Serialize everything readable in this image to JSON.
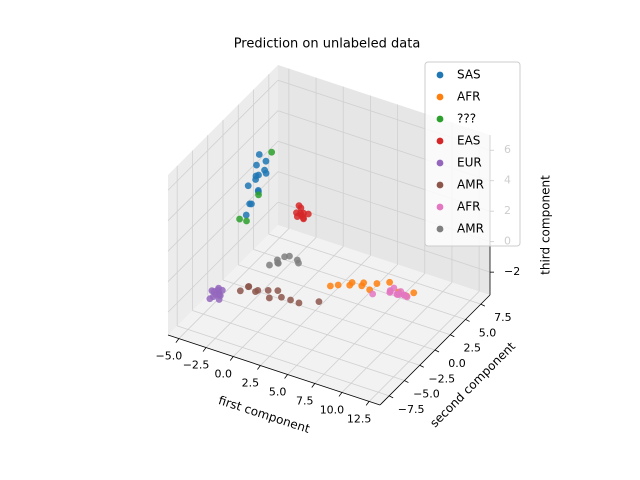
{
  "chart_data": {
    "type": "scatter3d",
    "title": "Prediction on unlabeled data",
    "x_label": "first component",
    "y_label": "second component",
    "z_label": "third component",
    "xlim": [
      -6,
      13.5
    ],
    "ylim": [
      -9,
      9
    ],
    "zlim": [
      -3.5,
      7
    ],
    "xticks": [
      {
        "value": -5,
        "label": "−5.0"
      },
      {
        "value": -2.5,
        "label": "−2.5"
      },
      {
        "value": 0,
        "label": "0.0"
      },
      {
        "value": 2.5,
        "label": "2.5"
      },
      {
        "value": 5,
        "label": "5.0"
      },
      {
        "value": 7.5,
        "label": "7.5"
      },
      {
        "value": 10,
        "label": "10.0"
      },
      {
        "value": 12.5,
        "label": "12.5"
      }
    ],
    "yticks": [
      {
        "value": -7.5,
        "label": "−7.5"
      },
      {
        "value": -5,
        "label": "−5.0"
      },
      {
        "value": -2.5,
        "label": "−2.5"
      },
      {
        "value": 0,
        "label": "0.0"
      },
      {
        "value": 2.5,
        "label": "2.5"
      },
      {
        "value": 5,
        "label": "5.0"
      },
      {
        "value": 7.5,
        "label": "7.5"
      }
    ],
    "zticks": [
      {
        "value": -2,
        "label": "−2"
      },
      0,
      2,
      4,
      6
    ],
    "grid": true,
    "legend": "upper right",
    "series": [
      {
        "name": "SAS",
        "color": "#1f77b4",
        "x": [
          -3.2,
          -2.8,
          -3,
          -2.5,
          -3.4,
          -2.9,
          -2.6,
          -3.1,
          -3.5,
          -2.7,
          -3,
          -2.4,
          -3.3,
          -2.8
        ],
        "y": [
          0.5,
          -0.3,
          0,
          0.8,
          -0.5,
          0.3,
          1,
          -0.8,
          0.2,
          -0.1,
          0.6,
          0.4,
          -1,
          0.1
        ],
        "z": [
          4.5,
          4.2,
          3.8,
          4.8,
          3.5,
          4,
          3.9,
          2.5,
          2,
          3.2,
          5.2,
          4.4,
          1.8,
          3
        ]
      },
      {
        "name": "AFR",
        "color": "#ff7f0e",
        "x": [
          5,
          6,
          6.5,
          7,
          7.5,
          8,
          8.5,
          9,
          10,
          11.5,
          12,
          12.5
        ],
        "y": [
          -2,
          -2.5,
          -1.5,
          -2,
          -1,
          -2.2,
          -1.8,
          -1.5,
          -1.2,
          -2.4,
          -2,
          -1.7
        ],
        "z": [
          -0.5,
          0,
          -0.3,
          0.2,
          -0.1,
          0.3,
          0,
          0.4,
          0.6,
          0.8,
          0.5,
          0.7
        ]
      },
      {
        "name": "???",
        "color": "#2ca02c",
        "x": [
          -3.5,
          -2.2,
          -3.8,
          -2.9
        ],
        "y": [
          -0.6,
          1.2,
          -1.2,
          0.3
        ],
        "z": [
          1.2,
          5.3,
          1.5,
          2.7
        ]
      },
      {
        "name": "EAS",
        "color": "#d62728",
        "x": [
          0,
          0.4,
          -0.3,
          0.2,
          -0.2,
          0.5,
          0.1,
          -0.4,
          0.3,
          0
        ],
        "y": [
          2,
          1.8,
          2.3,
          2.1,
          1.7,
          2.4,
          1.9,
          2.2,
          1.6,
          2.5
        ],
        "z": [
          1.5,
          1.3,
          1.8,
          1.2,
          1.6,
          1.4,
          1.9,
          1.1,
          1.6,
          1.3
        ]
      },
      {
        "name": "EUR",
        "color": "#9467bd",
        "x": [
          -5,
          -4.6,
          -5.3,
          -4.8,
          -5.1,
          -4.4,
          -5.5,
          -4.9,
          -4.7,
          -5.2,
          -4.5,
          -5
        ],
        "y": [
          -3,
          -2.6,
          -3.4,
          -2.8,
          -3.2,
          -3.5,
          -2.7,
          -2.4,
          -3.1,
          -2.9,
          -3.3,
          -2.5
        ],
        "z": [
          -3,
          -2.8,
          -3.2,
          -2.9,
          -3.1,
          -2.7,
          -3,
          -3.3,
          -2.6,
          -2.9,
          -3.1,
          -2.8
        ]
      },
      {
        "name": "AMR",
        "color": "#8c564b",
        "x": [
          -3,
          -2.5,
          -2,
          -1.5,
          -1,
          -0.5,
          0,
          0.5,
          1,
          2,
          3.5,
          -2.2
        ],
        "y": [
          -2.5,
          -2,
          -1.8,
          -2.3,
          -1.5,
          -2.2,
          -1.7,
          -2,
          -1.4,
          -1.8,
          -1.2,
          -2.6
        ],
        "z": [
          -2.5,
          -2.3,
          -2.6,
          -2.2,
          -2.4,
          -2.5,
          -2.1,
          -2.3,
          -2.6,
          -2.4,
          -2.2,
          -2
        ]
      },
      {
        "name": "AFR",
        "color": "#e377c2",
        "x": [
          10.5,
          11,
          11.5,
          11.2,
          10.8,
          11.8,
          10.3,
          11.4,
          12,
          10.9,
          11.6,
          9
        ],
        "y": [
          -2,
          -1.8,
          -2.3,
          -1.5,
          -2.5,
          -2,
          -1.7,
          -2.4,
          -1.9,
          -2.1,
          -1.6,
          -2.2
        ],
        "z": [
          0.5,
          0.3,
          0.6,
          0.4,
          0.7,
          0.5,
          0.2,
          0.6,
          0.4,
          0.8,
          0.3,
          0
        ]
      },
      {
        "name": "AMR",
        "color": "#7f7f7f",
        "x": [
          -1,
          -0.5,
          -1.5,
          0,
          -0.8,
          0.5,
          -1.2,
          1
        ],
        "y": [
          0,
          0.3,
          -0.4,
          0.2,
          -0.2,
          0.6,
          0.4,
          -0.1
        ],
        "z": [
          -1,
          -0.8,
          -1.3,
          -0.6,
          -1.1,
          -0.9,
          -1.4,
          -0.7
        ]
      }
    ]
  }
}
